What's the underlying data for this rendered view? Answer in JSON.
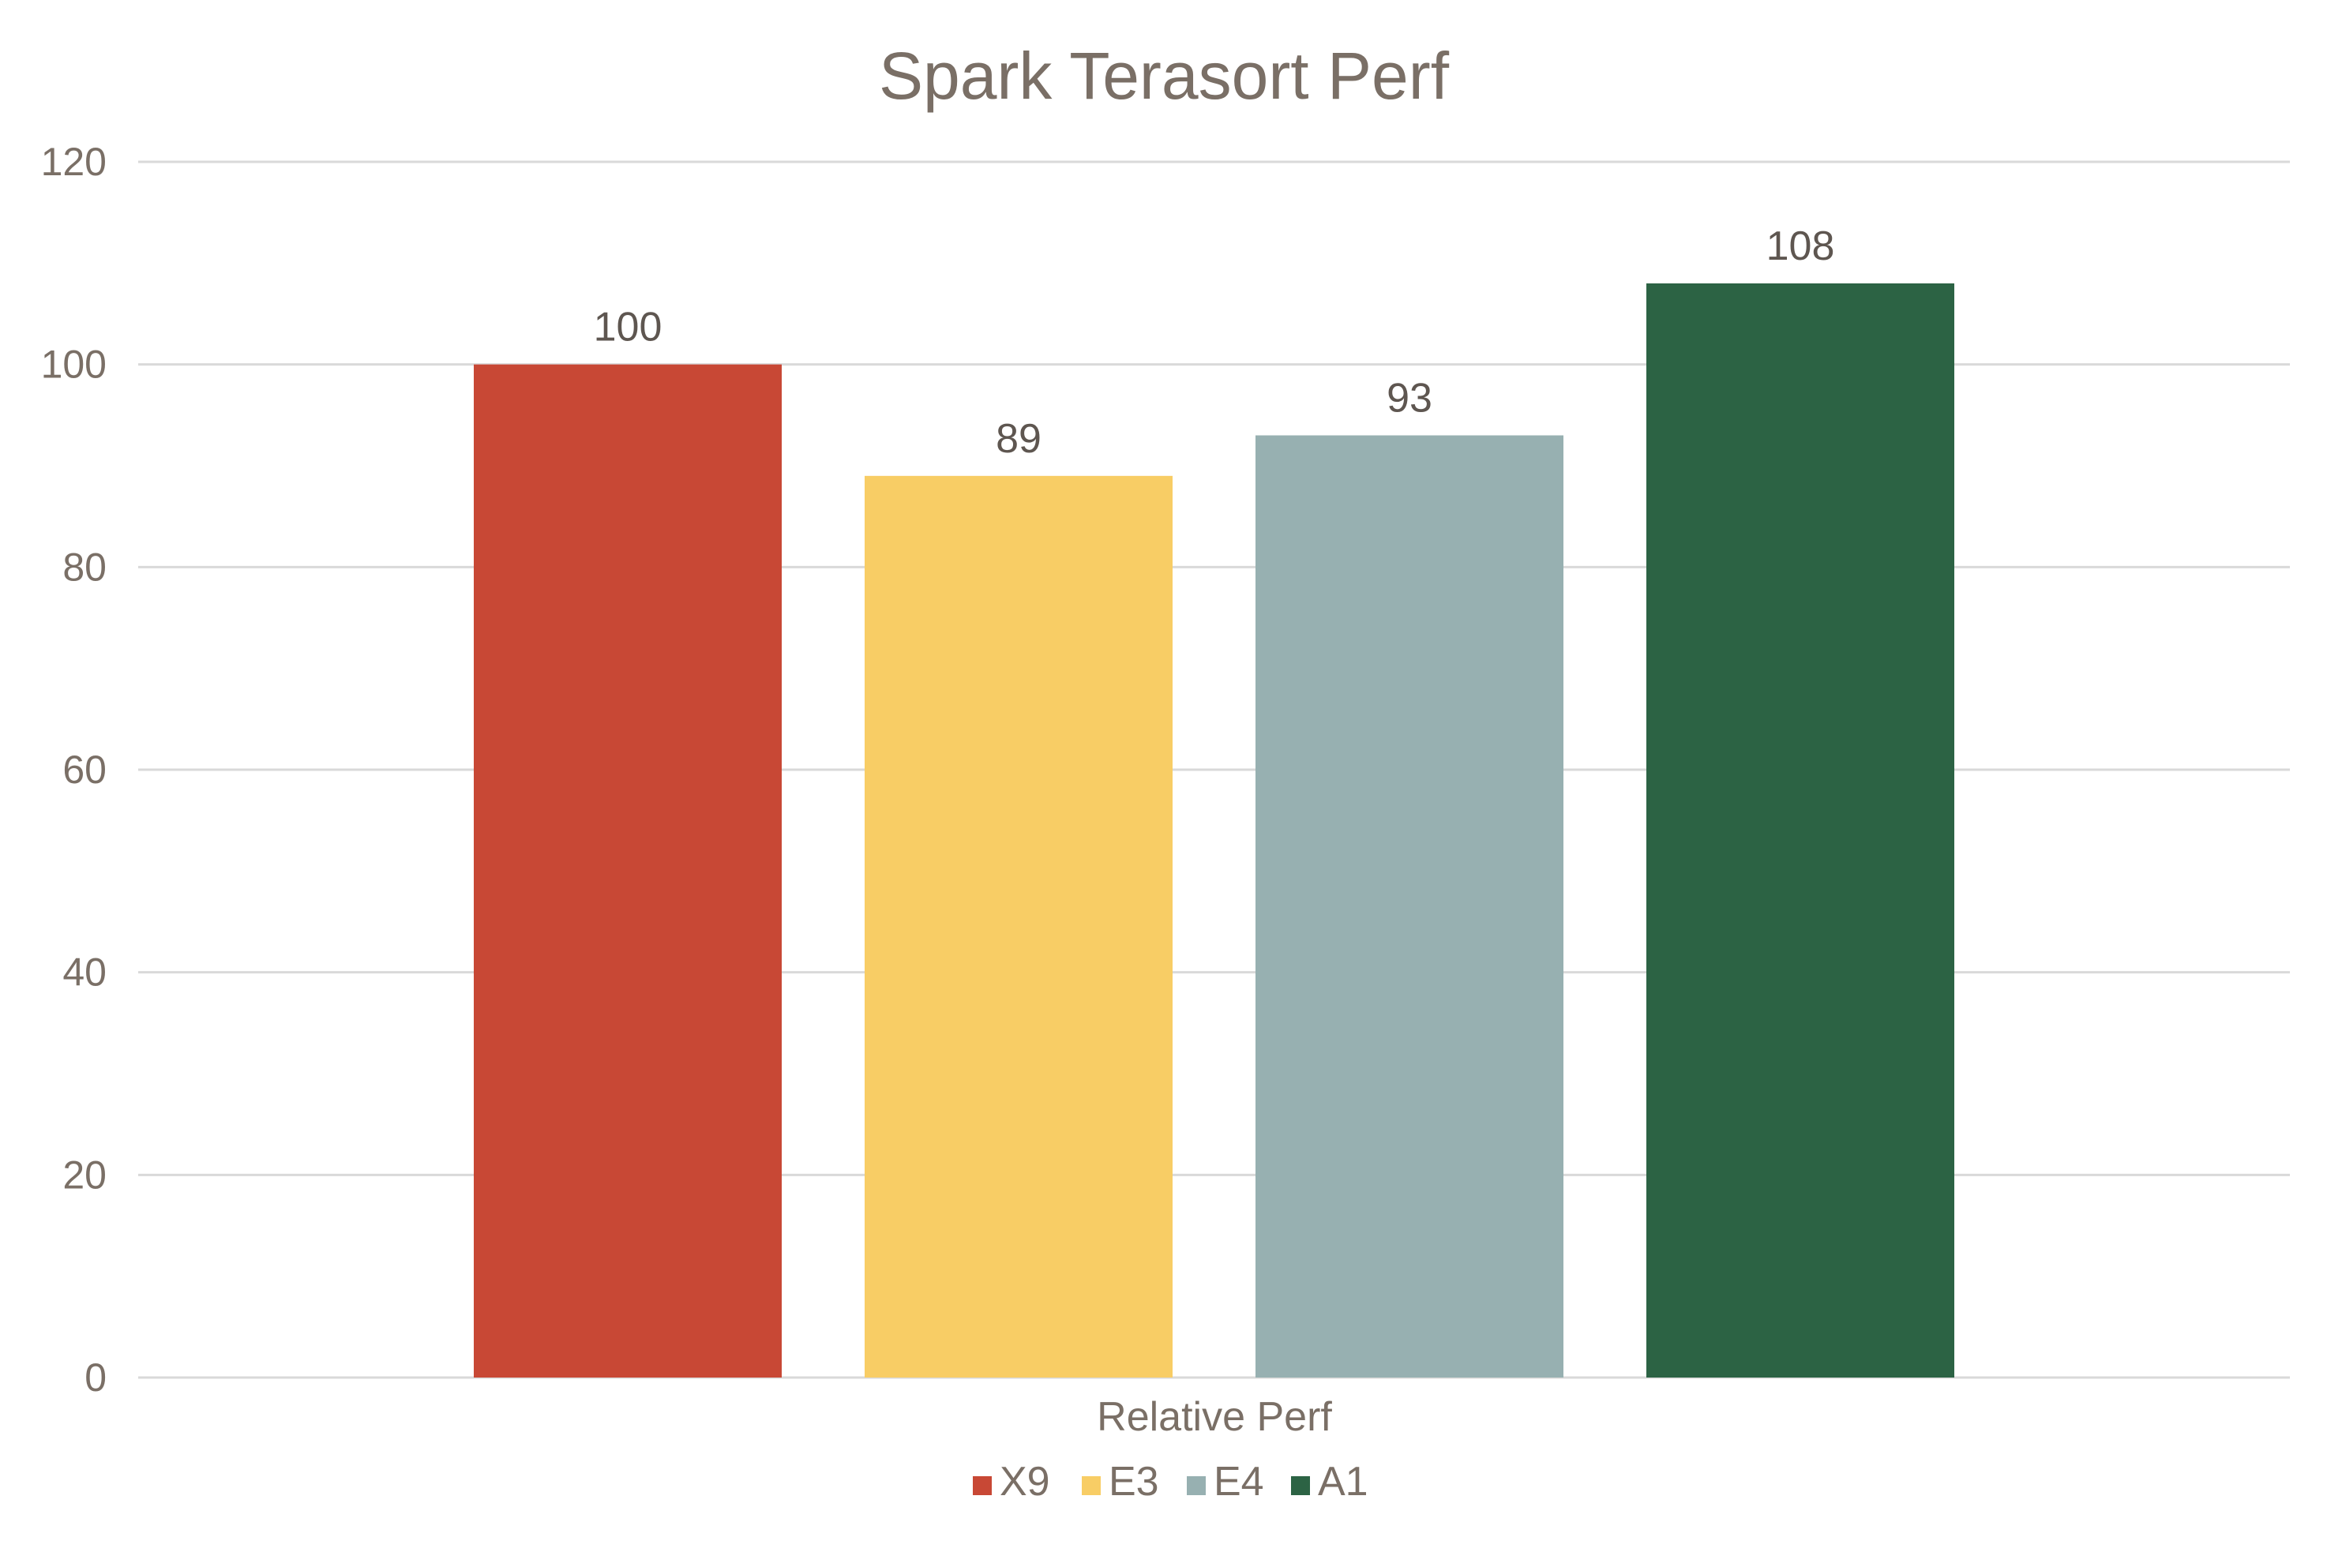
{
  "chart_data": {
    "type": "bar",
    "title": "Spark Terasort Perf",
    "xlabel": "Relative Perf",
    "ylabel": "",
    "categories": [
      "Relative Perf"
    ],
    "series": [
      {
        "name": "X9",
        "values": [
          100
        ],
        "color": "#c84835"
      },
      {
        "name": "E3",
        "values": [
          89
        ],
        "color": "#f8cd65"
      },
      {
        "name": "E4",
        "values": [
          93
        ],
        "color": "#97b0b1"
      },
      {
        "name": "A1",
        "values": [
          108
        ],
        "color": "#2c6344"
      }
    ],
    "ylim": [
      0,
      120
    ],
    "yticks": [
      "0",
      "20",
      "40",
      "60",
      "80",
      "100",
      "120"
    ],
    "grid": true,
    "legend": "bottom",
    "data_labels": true
  }
}
